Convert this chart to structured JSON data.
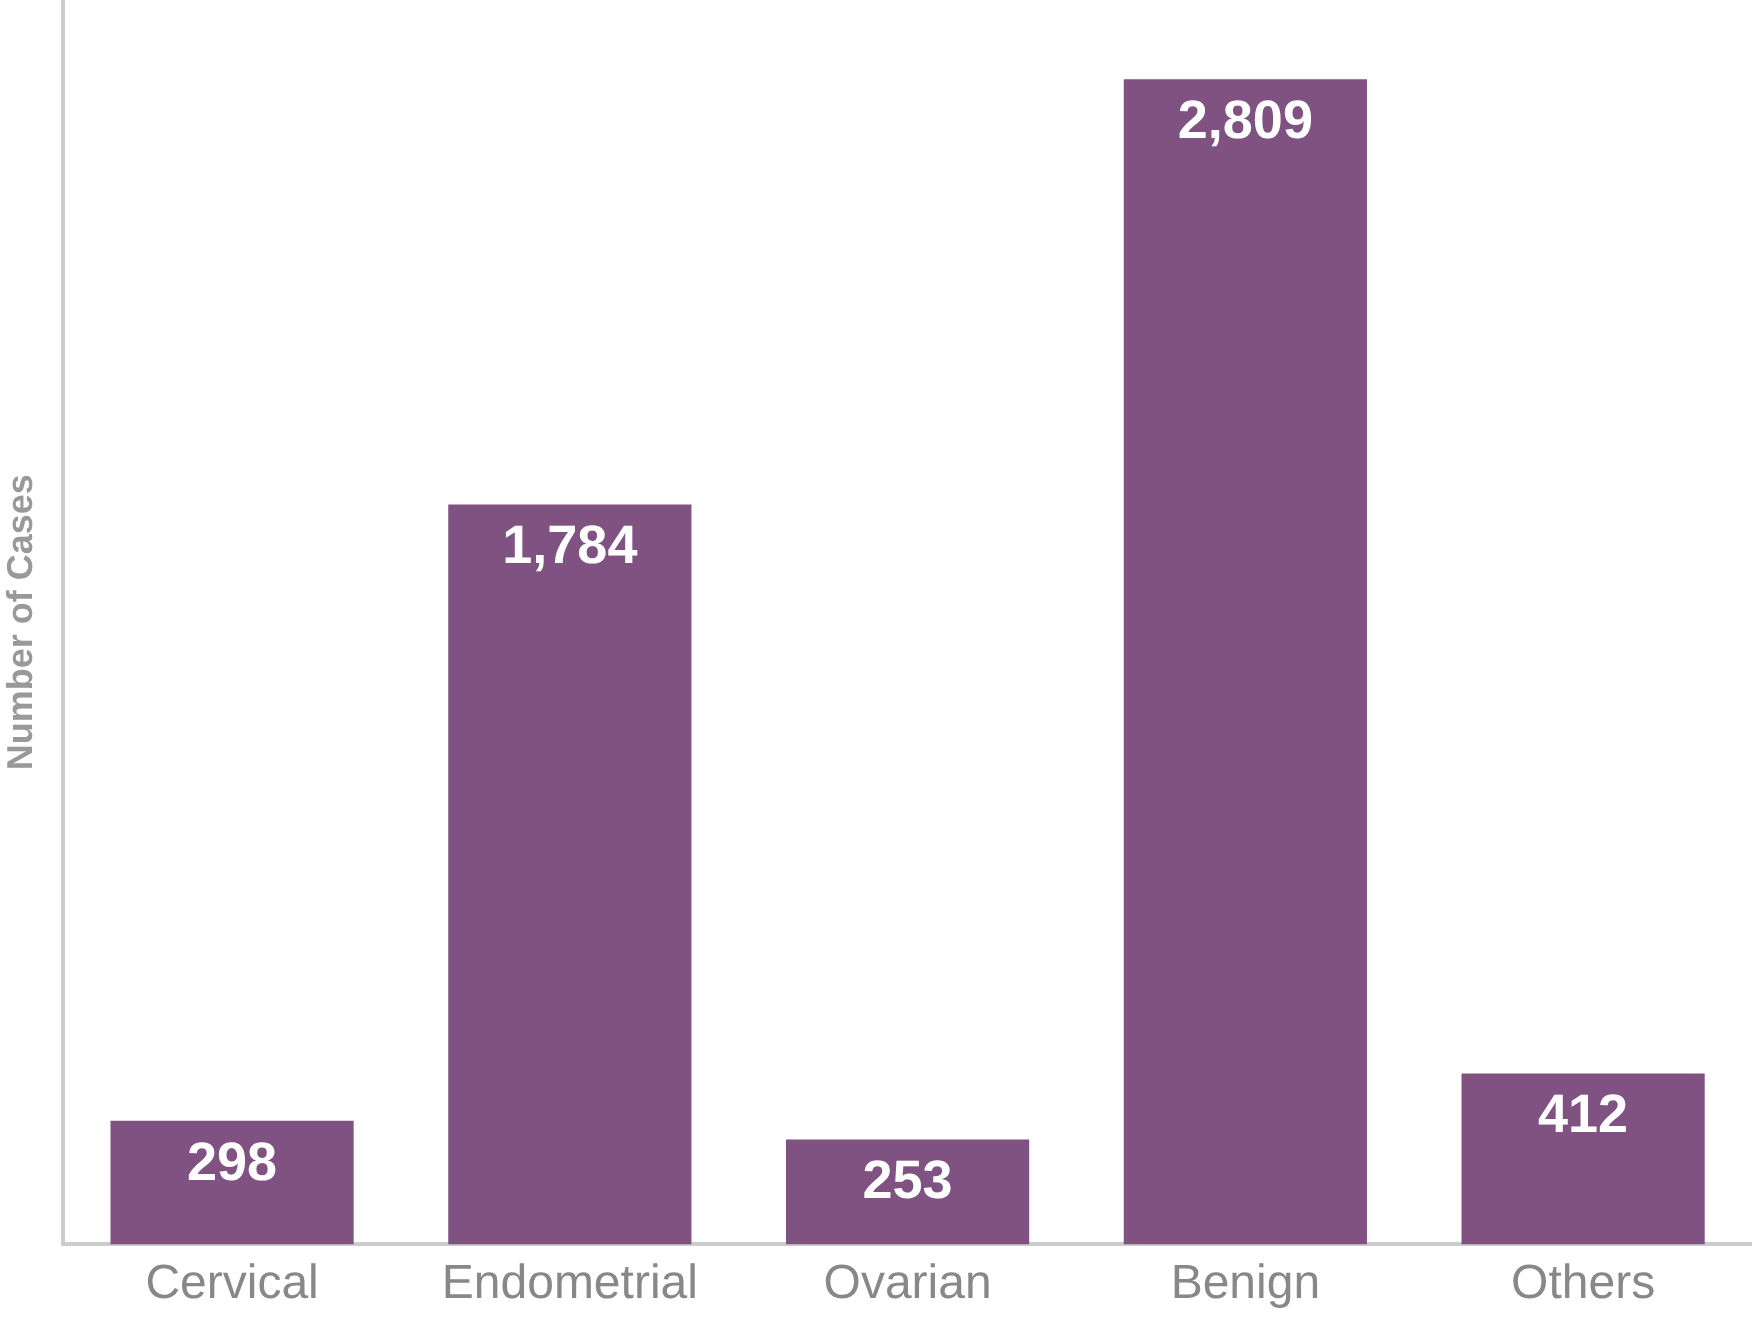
{
  "chart_data": {
    "type": "bar",
    "ylabel": "Number of Cases",
    "categories": [
      "Cervical",
      "Endometrial",
      "Ovarian",
      "Benign",
      "Others"
    ],
    "values": [
      298,
      1784,
      253,
      2809,
      412
    ],
    "value_labels": [
      "298",
      "1,784",
      "253",
      "2,809",
      "412"
    ],
    "color": "#7f5282",
    "grid": false,
    "legend": false,
    "tick_labels": "x"
  }
}
